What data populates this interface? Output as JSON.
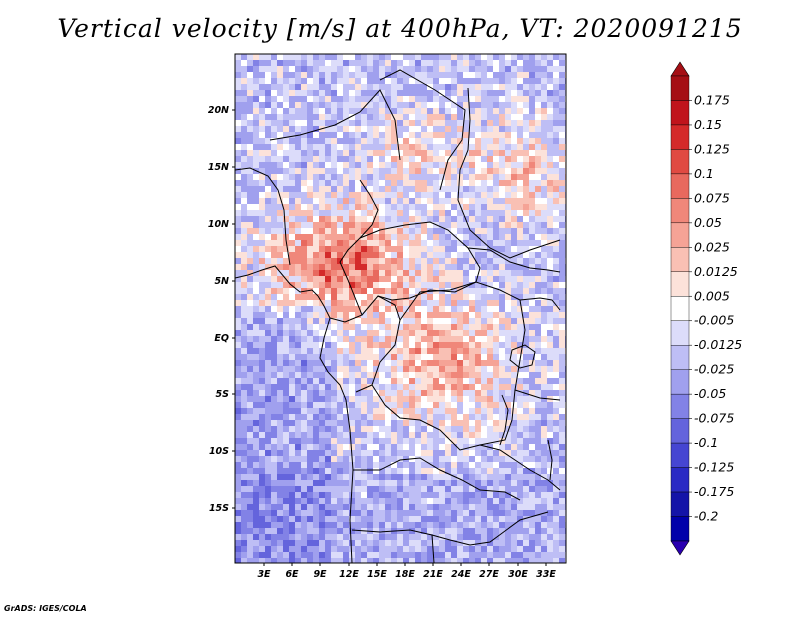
{
  "title": "Vertical velocity [m/s] at 400hPa, VT: 2020091215",
  "credit": "GrADS: IGES/COLA",
  "map": {
    "lat_ticks": [
      "20N",
      "15N",
      "10N",
      "5N",
      "EQ",
      "5S",
      "10S",
      "15S"
    ],
    "lon_ticks": [
      "3E",
      "6E",
      "9E",
      "12E",
      "15E",
      "18E",
      "21E",
      "24E",
      "27E",
      "30E",
      "33E"
    ]
  },
  "colorbar": {
    "labels": [
      "0.175",
      "0.15",
      "0.125",
      "0.1",
      "0.075",
      "0.05",
      "0.025",
      "0.0125",
      "0.005",
      "-0.005",
      "-0.0125",
      "-0.025",
      "-0.05",
      "-0.075",
      "-0.1",
      "-0.125",
      "-0.175",
      "-0.2"
    ],
    "colors": [
      "#a50f15",
      "#c0141c",
      "#d42a2a",
      "#e04a42",
      "#e8695e",
      "#f0877a",
      "#f5a396",
      "#f9c0b4",
      "#fce2da",
      "#ffffff",
      "#dcdcfa",
      "#bebef5",
      "#a0a0ee",
      "#8282e6",
      "#6464dc",
      "#4646d2",
      "#2a2ac4",
      "#1414a8",
      "#0000aa"
    ],
    "over_color": "#a50f15",
    "under_color": "#2a00b0"
  },
  "field": {
    "background": "#ffffff"
  }
}
